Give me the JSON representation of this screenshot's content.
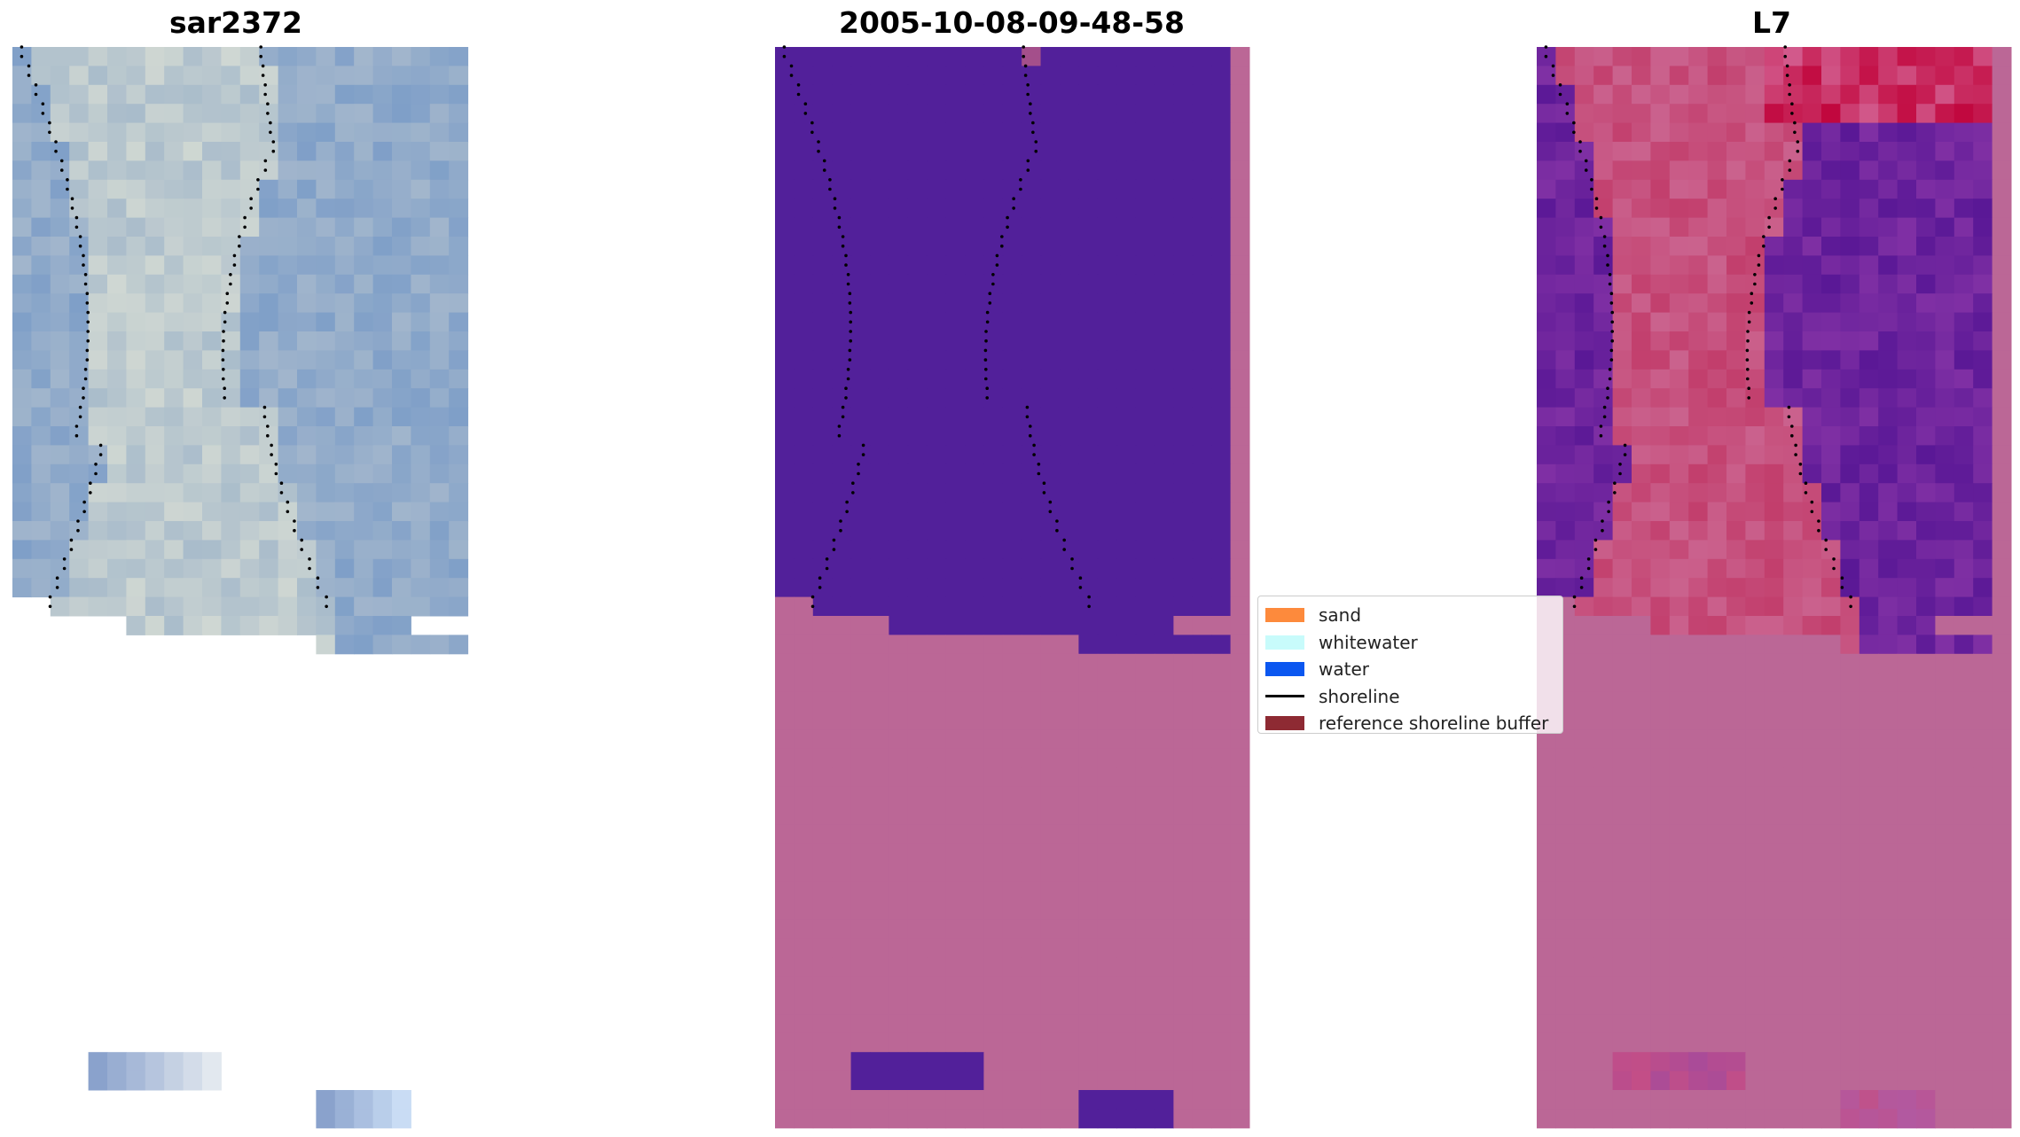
{
  "panels": [
    {
      "title": "sar2372"
    },
    {
      "title": "2005-10-08-09-48-58"
    },
    {
      "title": "L7"
    }
  ],
  "legend": {
    "items": [
      {
        "label": "sand",
        "color": "#fd8a3c",
        "kind": "patch"
      },
      {
        "label": "whitewater",
        "color": "#c8fbfb",
        "kind": "patch"
      },
      {
        "label": "water",
        "color": "#0b57f0",
        "kind": "patch"
      },
      {
        "label": "shoreline",
        "color": "#000000",
        "kind": "line"
      },
      {
        "label": "reference shoreline buffer",
        "color": "#8e2a33",
        "kind": "patch"
      }
    ]
  },
  "colors": {
    "classification_water_mask": "#52209a",
    "classification_land": "#bb6796",
    "rgb_base": "#8fa6c9",
    "ndwi_land": "#c9416f",
    "ndwi_water": "#6c1e9a"
  }
}
